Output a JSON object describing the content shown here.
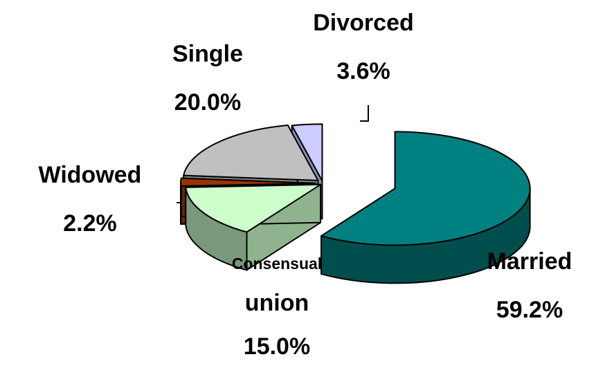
{
  "chart_data": {
    "type": "pie3d",
    "categories": [
      "Married",
      "Consensual union",
      "Widowed",
      "Single",
      "Divorced"
    ],
    "values": [
      59.2,
      15.0,
      2.2,
      20.0,
      3.6
    ],
    "value_labels": [
      "59.2%",
      "15.0%",
      "2.2%",
      "20.0%",
      "3.6%"
    ],
    "colors": [
      "#008080",
      "#ccffcc",
      "#993300",
      "#c0c0c0",
      "#ccccff"
    ]
  }
}
